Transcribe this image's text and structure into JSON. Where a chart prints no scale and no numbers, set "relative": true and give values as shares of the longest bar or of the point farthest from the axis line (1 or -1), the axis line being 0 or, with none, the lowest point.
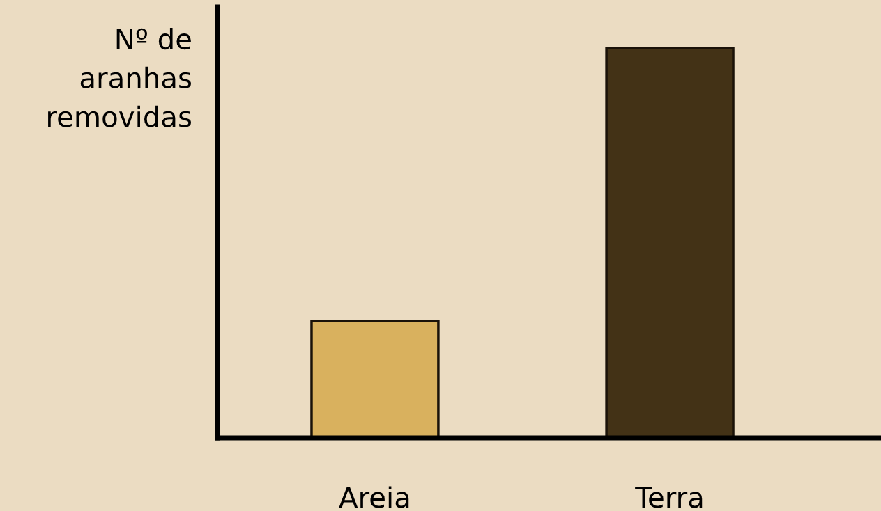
{
  "chart_data": {
    "type": "bar",
    "ylabel": "Nº de\naranhas\nremovidas",
    "categories": [
      "Areia",
      "Terra"
    ],
    "values": [
      0.3,
      1
    ],
    "colors": [
      "#d9b15e",
      "#433216"
    ],
    "relative": true,
    "grid": false,
    "legend": false
  }
}
